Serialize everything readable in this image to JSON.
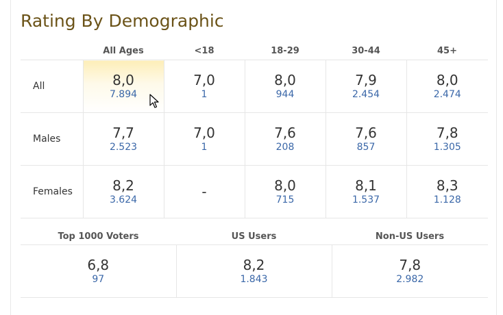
{
  "title": "Rating By Demographic",
  "age_headers": [
    "All Ages",
    "<18",
    "18-29",
    "30-44",
    "45+"
  ],
  "rows": [
    {
      "label": "All",
      "cells": [
        {
          "rating": "8,0",
          "votes": "7.894"
        },
        {
          "rating": "7,0",
          "votes": "1"
        },
        {
          "rating": "8,0",
          "votes": "944"
        },
        {
          "rating": "7,9",
          "votes": "2.454"
        },
        {
          "rating": "8,0",
          "votes": "2.474"
        }
      ]
    },
    {
      "label": "Males",
      "cells": [
        {
          "rating": "7,7",
          "votes": "2.523"
        },
        {
          "rating": "7,0",
          "votes": "1"
        },
        {
          "rating": "7,6",
          "votes": "208"
        },
        {
          "rating": "7,6",
          "votes": "857"
        },
        {
          "rating": "7,8",
          "votes": "1.305"
        }
      ]
    },
    {
      "label": "Females",
      "cells": [
        {
          "rating": "8,2",
          "votes": "3.624"
        },
        {
          "rating": "-",
          "votes": ""
        },
        {
          "rating": "8,0",
          "votes": "715"
        },
        {
          "rating": "8,1",
          "votes": "1.537"
        },
        {
          "rating": "8,3",
          "votes": "1.128"
        }
      ]
    }
  ],
  "groups": {
    "headers": [
      "Top 1000 Voters",
      "US Users",
      "Non-US Users"
    ],
    "cells": [
      {
        "rating": "6,8",
        "votes": "97"
      },
      {
        "rating": "8,2",
        "votes": "1.843"
      },
      {
        "rating": "7,8",
        "votes": "2.982"
      }
    ]
  },
  "colors": {
    "title": "#6b5318",
    "votes_link": "#3a67a8",
    "highlight": "#fdeeb8"
  },
  "icons": {
    "cursor": "mouse-pointer-icon"
  }
}
